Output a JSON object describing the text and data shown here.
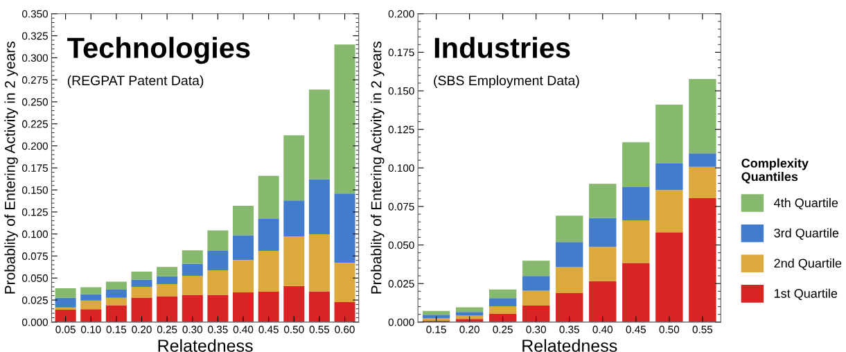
{
  "chart_data": [
    {
      "type": "bar",
      "stacked": true,
      "title": "Technologies",
      "subtitle": "(REGPAT Patent Data)",
      "xlabel": "Relatedness",
      "ylabel": "Probablity of Entering Activity in 2 years",
      "categories": [
        "0.05",
        "0.10",
        "0.15",
        "0.20",
        "0.25",
        "0.30",
        "0.35",
        "0.40",
        "0.45",
        "0.50",
        "0.55",
        "0.60"
      ],
      "series": [
        {
          "color": "#da2323",
          "values": [
            0.014,
            0.0147,
            0.0192,
            0.0278,
            0.0294,
            0.031,
            0.031,
            0.0336,
            0.0344,
            0.041,
            0.0349,
            0.0226
          ]
        },
        {
          "color": "#dba93c",
          "values": [
            0.0025,
            0.0097,
            0.0084,
            0.0121,
            0.0137,
            0.0215,
            0.0278,
            0.0368,
            0.0465,
            0.0564,
            0.0649,
            0.0449
          ]
        },
        {
          "color": "#437ccc",
          "values": [
            0.0111,
            0.0071,
            0.0092,
            0.0081,
            0.0089,
            0.0137,
            0.0221,
            0.0281,
            0.0361,
            0.0406,
            0.0622,
            0.0785
          ]
        },
        {
          "color": "#86b96e",
          "values": [
            0.0107,
            0.0081,
            0.0091,
            0.0092,
            0.0105,
            0.0152,
            0.0231,
            0.0335,
            0.049,
            0.074,
            0.102,
            0.169
          ]
        }
      ],
      "ylim": [
        0,
        0.35
      ],
      "yticks": [
        {
          "value": 0,
          "label": "0.000"
        },
        {
          "value": 0.025,
          "label": "0.025"
        },
        {
          "value": 0.05,
          "label": "0.050"
        },
        {
          "value": 0.075,
          "label": "0.075"
        },
        {
          "value": 0.1,
          "label": "0.100"
        },
        {
          "value": 0.125,
          "label": "0.125"
        },
        {
          "value": 0.15,
          "label": "0.150"
        },
        {
          "value": 0.175,
          "label": "0.175"
        },
        {
          "value": 0.2,
          "label": "0.200"
        },
        {
          "value": 0.225,
          "label": "0.225"
        },
        {
          "value": 0.25,
          "label": "0.250"
        },
        {
          "value": 0.275,
          "label": "0.275"
        },
        {
          "value": 0.3,
          "label": "0.300"
        },
        {
          "value": 0.325,
          "label": "0.325"
        },
        {
          "value": 0.35,
          "label": "0.350"
        }
      ],
      "grid": false,
      "legend": false
    },
    {
      "type": "bar",
      "stacked": true,
      "title": "Industries",
      "subtitle": "(SBS Employment Data)",
      "xlabel": "Relatedness",
      "ylabel": "Probablity of Entering Activity in 2 years",
      "legend_title": "Complexity Quantiles",
      "categories": [
        "0.15",
        "0.20",
        "0.25",
        "0.30",
        "0.35",
        "0.40",
        "0.45",
        "0.50",
        "0.55"
      ],
      "series": [
        {
          "name": "1st Quartile",
          "color": "#da2323",
          "values": [
            0.0008,
            0.002,
            0.0053,
            0.0107,
            0.0188,
            0.0266,
            0.0384,
            0.0582,
            0.0804
          ]
        },
        {
          "name": "2nd Quartile",
          "color": "#dba93c",
          "values": [
            0.0016,
            0.0022,
            0.0049,
            0.0097,
            0.0169,
            0.0222,
            0.0276,
            0.0275,
            0.0203
          ]
        },
        {
          "name": "3rd Quartile",
          "color": "#437ccc",
          "values": [
            0.0023,
            0.0024,
            0.0053,
            0.0095,
            0.0162,
            0.0186,
            0.0216,
            0.0171,
            0.0088
          ]
        },
        {
          "name": "4th Quartile",
          "color": "#86b96e",
          "values": [
            0.0025,
            0.003,
            0.0057,
            0.0099,
            0.0171,
            0.0223,
            0.0291,
            0.0382,
            0.0482
          ]
        }
      ],
      "ylim": [
        0,
        0.2
      ],
      "yticks": [
        {
          "value": 0,
          "label": "0.000"
        },
        {
          "value": 0.025,
          "label": "0.025"
        },
        {
          "value": 0.05,
          "label": "0.050"
        },
        {
          "value": 0.075,
          "label": "0.075"
        },
        {
          "value": 0.1,
          "label": "0.100"
        },
        {
          "value": 0.125,
          "label": "0.125"
        },
        {
          "value": 0.15,
          "label": "0.150"
        },
        {
          "value": 0.175,
          "label": "0.175"
        },
        {
          "value": 0.2,
          "label": "0.200"
        }
      ],
      "grid": false,
      "legend": "right"
    }
  ]
}
